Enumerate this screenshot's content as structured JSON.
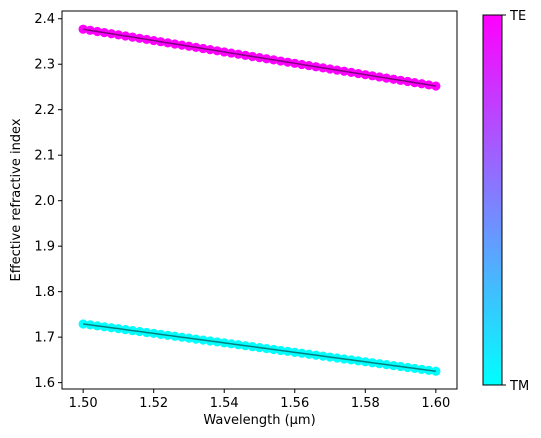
{
  "chart_data": {
    "type": "scatter",
    "title": "",
    "xlabel": "Wavelength (μm)",
    "ylabel": "Effective refractive index",
    "xlim": [
      1.494,
      1.606
    ],
    "ylim": [
      1.586,
      2.417
    ],
    "xticks": [
      "1.50",
      "1.52",
      "1.54",
      "1.56",
      "1.58",
      "1.60"
    ],
    "yticks": [
      "1.6",
      "1.7",
      "1.8",
      "1.9",
      "2.0",
      "2.1",
      "2.2",
      "2.3",
      "2.4"
    ],
    "grid": false,
    "colorbar": {
      "colormap": "cool",
      "low_label": "TM",
      "high_label": "TE",
      "low_color": "#00ffff",
      "high_color": "#ff00ff"
    },
    "series": [
      {
        "mode": "TE",
        "x_start": 1.5,
        "x_end": 1.6,
        "y_start": 2.377,
        "y_end": 2.252,
        "points": 51,
        "color": "#ff00ff",
        "line_color": "#7f007f"
      },
      {
        "mode": "TM",
        "x_start": 1.5,
        "x_end": 1.6,
        "y_start": 1.729,
        "y_end": 1.625,
        "points": 51,
        "color": "#00ffff",
        "line_color": "#007f7f"
      }
    ]
  }
}
